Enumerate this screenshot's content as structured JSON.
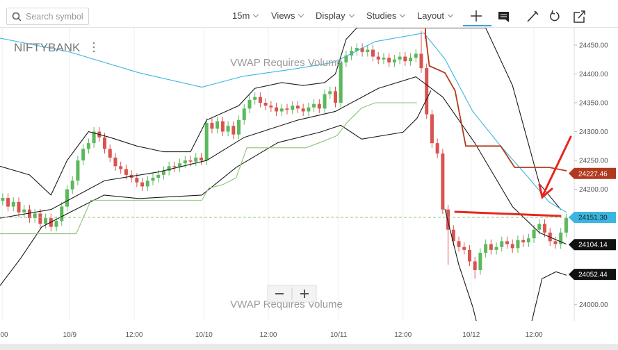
{
  "toolbar": {
    "search_placeholder": "Search symbol",
    "interval": "15m",
    "menus": [
      "Views",
      "Display",
      "Studies",
      "Layout"
    ]
  },
  "chart_data": {
    "type": "candlestick",
    "symbol": "NIFTYBANK",
    "annotations": [
      "VWAP Requires Volume",
      "VWAP Requires Volume"
    ],
    "x": [
      0,
      1,
      2,
      3,
      4,
      5,
      6,
      7,
      8,
      9,
      10,
      11,
      12,
      13,
      14,
      15,
      16,
      17,
      18,
      19,
      20,
      21,
      22,
      23,
      24,
      25,
      26,
      27,
      28,
      29,
      30,
      31,
      32,
      33,
      34,
      35,
      36,
      37,
      38,
      39,
      40,
      41,
      42,
      43,
      44,
      45,
      46,
      47,
      48,
      49,
      50,
      51,
      52,
      53,
      54,
      55,
      56,
      57,
      58,
      59,
      60,
      61,
      62,
      63,
      64,
      65,
      66,
      67,
      68,
      69,
      70,
      71,
      72,
      73,
      74,
      75,
      76,
      77,
      78,
      79,
      80,
      81,
      82,
      83,
      84,
      85,
      86,
      87,
      88,
      89,
      90,
      91,
      92,
      93,
      94,
      95,
      96,
      97,
      98,
      99,
      100,
      101,
      102,
      103,
      104,
      105
    ],
    "open": [
      24180,
      24185,
      24170,
      24178,
      24160,
      24165,
      24150,
      24158,
      24140,
      24150,
      24135,
      24145,
      24170,
      24200,
      24215,
      24250,
      24270,
      24280,
      24300,
      24290,
      24270,
      24255,
      24240,
      24235,
      24225,
      24220,
      24212,
      24205,
      24215,
      24220,
      24225,
      24232,
      24240,
      24238,
      24245,
      24250,
      24248,
      24255,
      24250,
      24315,
      24305,
      24318,
      24300,
      24310,
      24295,
      24320,
      24340,
      24355,
      24360,
      24350,
      24345,
      24342,
      24335,
      24340,
      24338,
      24345,
      24340,
      24335,
      24342,
      24348,
      24340,
      24365,
      24370,
      24350,
      24420,
      24432,
      24440,
      24445,
      24438,
      24442,
      24430,
      24425,
      24428,
      24420,
      24425,
      24430,
      24422,
      24428,
      24435,
      24410,
      24330,
      24280,
      24262,
      24165,
      24130,
      24110,
      24100,
      24095,
      24075,
      24060,
      24090,
      24105,
      24095,
      24100,
      24110,
      24105,
      24098,
      24112,
      24108,
      24115,
      24130,
      24140,
      24125,
      24110,
      24105,
      24125
    ],
    "high": [
      24193,
      24193,
      24186,
      24186,
      24173,
      24173,
      24166,
      24166,
      24158,
      24158,
      24153,
      24178,
      24208,
      24223,
      24258,
      24278,
      24288,
      24308,
      24308,
      24298,
      24278,
      24263,
      24248,
      24243,
      24233,
      24228,
      24220,
      24223,
      24228,
      24233,
      24240,
      24248,
      24248,
      24253,
      24258,
      24258,
      24263,
      24263,
      24323,
      24323,
      24326,
      24326,
      24318,
      24318,
      24328,
      24348,
      24363,
      24368,
      24368,
      24358,
      24353,
      24350,
      24348,
      24348,
      24353,
      24353,
      24348,
      24350,
      24356,
      24356,
      24373,
      24378,
      24378,
      24428,
      24440,
      24448,
      24453,
      24453,
      24450,
      24450,
      24438,
      24436,
      24436,
      24433,
      24438,
      24438,
      24436,
      24443,
      24474,
      24418,
      24338,
      24288,
      24270,
      24173,
      24138,
      24118,
      24108,
      24103,
      24083,
      24098,
      24113,
      24113,
      24108,
      24118,
      24118,
      24113,
      24120,
      24120,
      24123,
      24138,
      24148,
      24148,
      24133,
      24118,
      24133,
      24158
    ],
    "low": [
      24172,
      24162,
      24162,
      24152,
      24152,
      24142,
      24142,
      24132,
      24132,
      24127,
      24127,
      24137,
      24162,
      24192,
      24207,
      24242,
      24262,
      24272,
      24282,
      24262,
      24247,
      24232,
      24227,
      24217,
      24212,
      24204,
      24197,
      24197,
      24207,
      24212,
      24217,
      24224,
      24230,
      24230,
      24237,
      24240,
      24240,
      24242,
      24242,
      24297,
      24297,
      24292,
      24292,
      24287,
      24287,
      24312,
      24332,
      24347,
      24342,
      24337,
      24334,
      24327,
      24327,
      24330,
      24330,
      24332,
      24327,
      24327,
      24334,
      24332,
      24332,
      24357,
      24342,
      24342,
      24412,
      24424,
      24432,
      24430,
      24430,
      24422,
      24417,
      24417,
      24412,
      24412,
      24417,
      24414,
      24414,
      24420,
      24402,
      24322,
      24272,
      24254,
      24157,
      24069,
      24102,
      24092,
      24087,
      24067,
      24045,
      24052,
      24082,
      24087,
      24087,
      24092,
      24097,
      24090,
      24090,
      24100,
      24100,
      24107,
      24122,
      24117,
      24102,
      24097,
      24097,
      24117
    ],
    "close": [
      24185,
      24170,
      24178,
      24160,
      24165,
      24150,
      24158,
      24140,
      24150,
      24135,
      24145,
      24170,
      24200,
      24215,
      24250,
      24270,
      24280,
      24300,
      24290,
      24270,
      24255,
      24240,
      24235,
      24225,
      24220,
      24212,
      24205,
      24215,
      24220,
      24225,
      24232,
      24240,
      24238,
      24245,
      24250,
      24248,
      24255,
      24250,
      24315,
      24305,
      24318,
      24300,
      24310,
      24295,
      24320,
      24340,
      24355,
      24360,
      24350,
      24345,
      24342,
      24335,
      24340,
      24338,
      24345,
      24340,
      24335,
      24342,
      24348,
      24340,
      24365,
      24370,
      24350,
      24420,
      24432,
      24440,
      24445,
      24438,
      24442,
      24430,
      24425,
      24428,
      24420,
      24425,
      24430,
      24422,
      24428,
      24435,
      24410,
      24330,
      24280,
      24262,
      24165,
      24130,
      24110,
      24100,
      24095,
      24075,
      24060,
      24090,
      24105,
      24095,
      24100,
      24110,
      24105,
      24098,
      24112,
      24108,
      24115,
      24130,
      24140,
      24125,
      24110,
      24105,
      24125,
      24150
    ],
    "up_color": "#5cb85c",
    "down_color": "#d9534f",
    "lines": [
      {
        "color": "#1a1a1a",
        "x": [
          -0.5,
          3.4,
          7.3,
          12.5,
          18.9,
          25.4,
          37.1,
          43.5,
          51.3,
          59.1,
          63,
          66.9,
          74.6,
          77.2,
          79.8,
          null,
          82.4,
          85,
          87.6,
          88.9,
          null,
          98,
          100.5,
          103.1,
          105.1
        ],
        "values": [
          24033,
          24081,
          24135,
          24160,
          24190,
          24184,
          24190,
          24238,
          24281,
          24299,
          24311,
          24287,
          24299,
          24323,
          24371,
          null,
          24166,
          24069,
          23996,
          23948,
          null,
          23948,
          24045,
          24057,
          24051
        ]
      },
      {
        "color": "#1a1a1a",
        "x": [
          -0.5,
          9,
          19,
          29,
          38,
          45,
          55,
          62,
          70,
          77,
          82,
          88,
          95,
          100,
          105
        ],
        "values": [
          24150,
          24165,
          24215,
          24230,
          24250,
          24290,
          24320,
          24335,
          24375,
          24395,
          24360,
          24280,
          24170,
          24125,
          24105
        ]
      },
      {
        "color": "#1a1a1a",
        "x": [
          -0.5,
          5,
          9,
          12,
          16,
          20,
          25,
          30,
          35,
          38,
          44,
          47,
          52,
          56,
          60,
          62,
          64,
          66,
          90,
          95,
          100,
          104
        ],
        "values": [
          24240,
          24225,
          24190,
          24250,
          24300,
          24290,
          24275,
          24265,
          24265,
          24320,
          24345,
          24375,
          24385,
          24380,
          24385,
          24400,
          24460,
          24480,
          24480,
          24380,
          24210,
          24165
        ]
      },
      {
        "color": "#3bb6e0",
        "x": [
          -0.5,
          12.5,
          25.4,
          37.1,
          44.8,
          53.9,
          61.7,
          69.4,
          78.5,
          82.4,
          87.6,
          92.8,
          98,
          101.8,
          105.1
        ],
        "values": [
          24462,
          24438,
          24402,
          24377,
          24396,
          24408,
          24420,
          24456,
          24471,
          24426,
          24335,
          24275,
          24220,
          24178,
          24160
        ]
      },
      {
        "color": "#8cc474",
        "x": [
          -0.5,
          13.7,
          16.3,
          16.3,
          37.1,
          38.4,
          41,
          43.5,
          45.5,
          56.5,
          59.1,
          62.3,
          64.3,
          66.9,
          69.4,
          77.2
        ],
        "values": [
          24123,
          24123,
          24178,
          24181,
          24181,
          24202,
          24208,
          24220,
          24272,
          24272,
          24281,
          24293,
          24317,
          24341,
          24350,
          24350
        ]
      },
      {
        "color": "#b03a1e",
        "x": [
          78.8,
          79.5,
          82.4,
          84.3,
          86.3,
          92.8,
          95.4,
          101.8,
          105.1
        ],
        "values": [
          24468,
          24414,
          24402,
          24371,
          24275,
          24275,
          24238,
          24238,
          24232
        ]
      }
    ],
    "price_labels": [
      {
        "value": 24227.46,
        "fill": "#b03a1e",
        "text_color": "#ffffff"
      },
      {
        "value": 24151.3,
        "label": "24151.30",
        "fill": "#3bb6e0",
        "text_color": "#1a1a1a",
        "dashed": true,
        "line_color": "#8cc474"
      },
      {
        "value": 24104.14,
        "fill": "#111111",
        "text_color": "#ffffff"
      },
      {
        "value": 24052.44,
        "fill": "#111111",
        "text_color": "#ffffff"
      }
    ],
    "xlim": [
      -0.5,
      106.5
    ],
    "ylim": [
      23972,
      24480
    ],
    "xticks": [
      {
        "value": -0.1,
        "label": "00"
      },
      {
        "value": 12.5,
        "label": "10/9"
      },
      {
        "value": 24.5,
        "label": "12:00"
      },
      {
        "value": 37.5,
        "label": "10/10"
      },
      {
        "value": 49.5,
        "label": "12:00"
      },
      {
        "value": 62.6,
        "label": "10/11"
      },
      {
        "value": 74.6,
        "label": "12:00"
      },
      {
        "value": 87.3,
        "label": "10/12"
      },
      {
        "value": 99,
        "label": "12:00"
      }
    ],
    "yticks": [
      {
        "value": 24000,
        "label": "24000.00"
      },
      {
        "value": 24050,
        "label": "24050.00"
      },
      {
        "value": 24100,
        "label": "24100.00"
      },
      {
        "value": 24150,
        "label": "24150.00"
      },
      {
        "value": 24200,
        "label": "24200.00"
      },
      {
        "value": 24250,
        "label": "24250.00"
      },
      {
        "value": 24300,
        "label": "24300.00"
      },
      {
        "value": 24350,
        "label": "24350.00"
      },
      {
        "value": 24400,
        "label": "24400.00"
      },
      {
        "value": 24450,
        "label": "24450.00"
      }
    ],
    "grid": "x"
  }
}
